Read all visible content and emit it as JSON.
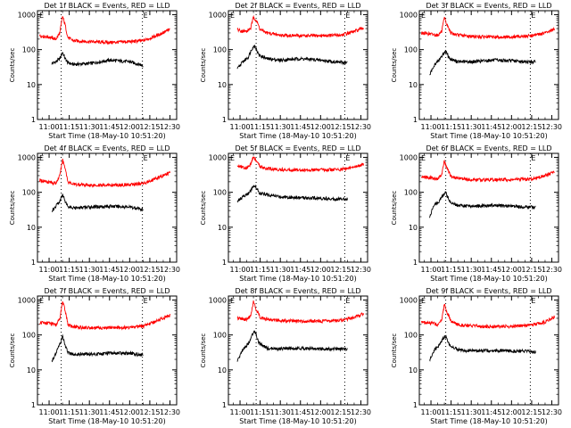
{
  "layout": {
    "rows": 3,
    "cols": 3
  },
  "common": {
    "ylabel": "Counts/sec",
    "xlabel": "Start Time (18-May-10 10:51:20)",
    "x_ticks": [
      "11:00",
      "11:15",
      "11:30",
      "11:45",
      "12:00",
      "12:15",
      "12:30"
    ],
    "y_ticks": [
      "1",
      "10",
      "100",
      "1000"
    ],
    "marker_left": "E",
    "marker_right": "E",
    "colors": {
      "events": "#000000",
      "lld": "#ff0000",
      "axis": "#000000",
      "dotted": "#000000"
    }
  },
  "chart_data": [
    {
      "type": "line",
      "title": "Det 1f BLACK = Events, RED = LLD",
      "log_y": true,
      "x_domain": [
        "10:51:20",
        "12:35:00"
      ],
      "ylim": [
        1,
        1300
      ],
      "vlines": [
        "11:09:00",
        "12:09:30"
      ],
      "series": [
        {
          "name": "Events",
          "x": [
            "11:02",
            "11:05",
            "11:08",
            "11:10",
            "11:12",
            "11:14",
            "11:18",
            "11:30",
            "11:45",
            "12:00",
            "12:05",
            "12:10"
          ],
          "y": [
            40,
            45,
            55,
            85,
            55,
            42,
            38,
            40,
            50,
            45,
            40,
            35
          ]
        },
        {
          "name": "LLD",
          "x": [
            "10:53",
            "11:00",
            "11:05",
            "11:08",
            "11:10",
            "11:12",
            "11:14",
            "11:18",
            "11:30",
            "11:45",
            "12:00",
            "12:10",
            "12:20",
            "12:30"
          ],
          "y": [
            250,
            230,
            200,
            300,
            900,
            500,
            220,
            180,
            170,
            160,
            170,
            180,
            250,
            380
          ]
        }
      ]
    },
    {
      "type": "line",
      "title": "Det 2f BLACK = Events, RED = LLD",
      "log_y": true,
      "x_domain": [
        "10:51:20",
        "12:35:00"
      ],
      "ylim": [
        1,
        1300
      ],
      "vlines": [
        "11:12:00",
        "12:18:00"
      ],
      "series": [
        {
          "name": "Events",
          "x": [
            "10:58",
            "11:02",
            "11:06",
            "11:09",
            "11:11",
            "11:14",
            "11:20",
            "11:30",
            "11:45",
            "12:00",
            "12:10",
            "12:20"
          ],
          "y": [
            28,
            45,
            60,
            110,
            130,
            70,
            55,
            50,
            55,
            50,
            45,
            42
          ]
        },
        {
          "name": "LLD",
          "x": [
            "10:58",
            "11:00",
            "11:05",
            "11:08",
            "11:10",
            "11:12",
            "11:15",
            "11:20",
            "11:30",
            "11:45",
            "12:00",
            "12:15",
            "12:25",
            "12:32"
          ],
          "y": [
            380,
            350,
            330,
            420,
            850,
            700,
            380,
            300,
            260,
            250,
            250,
            260,
            330,
            420
          ]
        }
      ]
    },
    {
      "type": "line",
      "title": "Det 3f BLACK = Events, RED = LLD",
      "log_y": true,
      "x_domain": [
        "10:51:20",
        "12:35:00"
      ],
      "ylim": [
        1,
        1300
      ],
      "vlines": [
        "11:11:00",
        "12:14:00"
      ],
      "series": [
        {
          "name": "Events",
          "x": [
            "10:59",
            "11:02",
            "11:06",
            "11:09",
            "11:11",
            "11:14",
            "11:20",
            "11:30",
            "11:45",
            "12:00",
            "12:10",
            "12:18"
          ],
          "y": [
            18,
            35,
            50,
            75,
            90,
            55,
            45,
            45,
            50,
            48,
            45,
            45
          ]
        },
        {
          "name": "LLD",
          "x": [
            "10:53",
            "11:00",
            "11:05",
            "11:08",
            "11:10",
            "11:12",
            "11:15",
            "11:20",
            "11:30",
            "11:45",
            "12:00",
            "12:15",
            "12:25",
            "12:32"
          ],
          "y": [
            300,
            280,
            260,
            330,
            800,
            500,
            300,
            260,
            240,
            230,
            230,
            250,
            300,
            380
          ]
        }
      ]
    },
    {
      "type": "line",
      "title": "Det 4f BLACK = Events, RED = LLD",
      "log_y": true,
      "x_domain": [
        "10:51:20",
        "12:35:00"
      ],
      "ylim": [
        1,
        1300
      ],
      "vlines": [
        "11:09:00",
        "12:09:30"
      ],
      "series": [
        {
          "name": "Events",
          "x": [
            "11:02",
            "11:05",
            "11:08",
            "11:10",
            "11:12",
            "11:14",
            "11:18",
            "11:30",
            "11:45",
            "12:00",
            "12:05",
            "12:10"
          ],
          "y": [
            30,
            40,
            55,
            90,
            55,
            40,
            35,
            38,
            40,
            38,
            35,
            32
          ]
        },
        {
          "name": "LLD",
          "x": [
            "10:53",
            "11:00",
            "11:05",
            "11:08",
            "11:10",
            "11:12",
            "11:14",
            "11:18",
            "11:30",
            "11:45",
            "12:00",
            "12:10",
            "12:20",
            "12:30"
          ],
          "y": [
            220,
            200,
            180,
            300,
            850,
            500,
            200,
            170,
            160,
            160,
            165,
            180,
            250,
            360
          ]
        }
      ]
    },
    {
      "type": "line",
      "title": "Det 5f BLACK = Events, RED = LLD",
      "log_y": true,
      "x_domain": [
        "10:51:20",
        "12:35:00"
      ],
      "ylim": [
        1,
        1300
      ],
      "vlines": [
        "11:12:00",
        "12:18:00"
      ],
      "series": [
        {
          "name": "Events",
          "x": [
            "10:58",
            "11:02",
            "11:06",
            "11:09",
            "11:11",
            "11:14",
            "11:20",
            "11:30",
            "11:45",
            "12:00",
            "12:10",
            "12:20"
          ],
          "y": [
            55,
            75,
            90,
            130,
            160,
            100,
            85,
            75,
            70,
            68,
            65,
            65
          ]
        },
        {
          "name": "LLD",
          "x": [
            "10:58",
            "11:00",
            "11:05",
            "11:08",
            "11:10",
            "11:12",
            "11:15",
            "11:20",
            "11:30",
            "11:45",
            "12:00",
            "12:15",
            "12:25",
            "12:32"
          ],
          "y": [
            600,
            550,
            500,
            650,
            1050,
            800,
            550,
            480,
            450,
            440,
            440,
            450,
            520,
            650
          ]
        }
      ]
    },
    {
      "type": "line",
      "title": "Det 6f BLACK = Events, RED = LLD",
      "log_y": true,
      "x_domain": [
        "10:51:20",
        "12:35:00"
      ],
      "ylim": [
        1,
        1300
      ],
      "vlines": [
        "11:11:00",
        "12:14:00"
      ],
      "series": [
        {
          "name": "Events",
          "x": [
            "10:59",
            "11:02",
            "11:06",
            "11:09",
            "11:11",
            "11:14",
            "11:20",
            "11:30",
            "11:45",
            "12:00",
            "12:10",
            "12:18"
          ],
          "y": [
            20,
            40,
            55,
            85,
            100,
            55,
            42,
            40,
            42,
            40,
            38,
            38
          ]
        },
        {
          "name": "LLD",
          "x": [
            "10:53",
            "11:00",
            "11:05",
            "11:08",
            "11:10",
            "11:12",
            "11:15",
            "11:20",
            "11:30",
            "11:45",
            "12:00",
            "12:15",
            "12:25",
            "12:32"
          ],
          "y": [
            280,
            260,
            240,
            320,
            800,
            480,
            280,
            250,
            230,
            230,
            230,
            240,
            300,
            380
          ]
        }
      ]
    },
    {
      "type": "line",
      "title": "Det 7f BLACK = Events, RED = LLD",
      "log_y": true,
      "x_domain": [
        "10:51:20",
        "12:35:00"
      ],
      "ylim": [
        1,
        1300
      ],
      "vlines": [
        "11:09:00",
        "12:09:30"
      ],
      "series": [
        {
          "name": "Events",
          "x": [
            "11:02",
            "11:05",
            "11:08",
            "11:10",
            "11:12",
            "11:14",
            "11:18",
            "11:30",
            "11:45",
            "12:00",
            "12:05",
            "12:10"
          ],
          "y": [
            18,
            30,
            55,
            90,
            50,
            32,
            28,
            28,
            30,
            30,
            28,
            27
          ]
        },
        {
          "name": "LLD",
          "x": [
            "10:53",
            "11:00",
            "11:05",
            "11:08",
            "11:10",
            "11:12",
            "11:14",
            "11:18",
            "11:30",
            "11:45",
            "12:00",
            "12:10",
            "12:20",
            "12:30"
          ],
          "y": [
            230,
            220,
            190,
            300,
            900,
            500,
            200,
            170,
            160,
            160,
            165,
            180,
            250,
            370
          ]
        }
      ]
    },
    {
      "type": "line",
      "title": "Det 8f BLACK = Events, RED = LLD",
      "log_y": true,
      "x_domain": [
        "10:51:20",
        "12:35:00"
      ],
      "ylim": [
        1,
        1300
      ],
      "vlines": [
        "11:12:00",
        "12:18:00"
      ],
      "series": [
        {
          "name": "Events",
          "x": [
            "10:58",
            "11:02",
            "11:06",
            "11:09",
            "11:11",
            "11:14",
            "11:20",
            "11:30",
            "11:45",
            "12:00",
            "12:10",
            "12:20"
          ],
          "y": [
            18,
            40,
            55,
            100,
            130,
            60,
            42,
            40,
            42,
            40,
            40,
            40
          ]
        },
        {
          "name": "LLD",
          "x": [
            "10:58",
            "11:00",
            "11:05",
            "11:08",
            "11:10",
            "11:12",
            "11:15",
            "11:20",
            "11:30",
            "11:45",
            "12:00",
            "12:15",
            "12:25",
            "12:32"
          ],
          "y": [
            300,
            290,
            270,
            380,
            900,
            550,
            320,
            280,
            260,
            250,
            250,
            260,
            320,
            400
          ]
        }
      ]
    },
    {
      "type": "line",
      "title": "Det 9f BLACK = Events, RED = LLD",
      "log_y": true,
      "x_domain": [
        "10:51:20",
        "12:35:00"
      ],
      "ylim": [
        1,
        1300
      ],
      "vlines": [
        "11:11:00",
        "12:14:00"
      ],
      "series": [
        {
          "name": "Events",
          "x": [
            "10:59",
            "11:02",
            "11:06",
            "11:09",
            "11:11",
            "11:14",
            "11:20",
            "11:30",
            "11:45",
            "12:00",
            "12:10",
            "12:18"
          ],
          "y": [
            18,
            35,
            50,
            80,
            90,
            50,
            38,
            35,
            36,
            35,
            34,
            33
          ]
        },
        {
          "name": "LLD",
          "x": [
            "10:53",
            "11:00",
            "11:05",
            "11:08",
            "11:10",
            "11:12",
            "11:15",
            "11:20",
            "11:30",
            "11:45",
            "12:00",
            "12:15",
            "12:25",
            "12:32"
          ],
          "y": [
            230,
            220,
            200,
            280,
            750,
            450,
            240,
            200,
            180,
            175,
            175,
            190,
            240,
            330
          ]
        }
      ]
    }
  ]
}
